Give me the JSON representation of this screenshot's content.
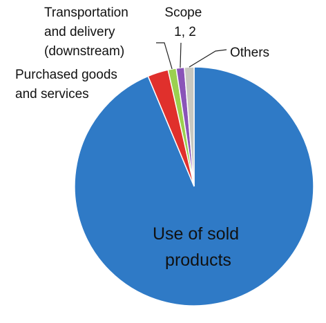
{
  "chart_data": {
    "type": "pie",
    "title": "",
    "slices": [
      {
        "label": "Use of sold products",
        "label_lines": [
          "Use of sold",
          "products"
        ],
        "value": 93.7,
        "color": "#2f7ac6"
      },
      {
        "label": "Purchased goods and services",
        "label_lines": [
          "Purchased goods",
          "and services"
        ],
        "value": 2.8,
        "color": "#e0302c"
      },
      {
        "label": "Transportation and delivery (downstream)",
        "label_lines": [
          "Transportation",
          "and delivery",
          "(downstream)"
        ],
        "value": 1.1,
        "color": "#9bd04f"
      },
      {
        "label": "Scope 1, 2",
        "label_lines": [
          "Scope",
          "1, 2"
        ],
        "value": 1.1,
        "color": "#8a54b8"
      },
      {
        "label": "Others",
        "label_lines": [
          "Others"
        ],
        "value": 1.3,
        "color": "#c8c8c0"
      }
    ],
    "colors": {
      "edge": "#ffffff",
      "leader": "#222222"
    }
  }
}
